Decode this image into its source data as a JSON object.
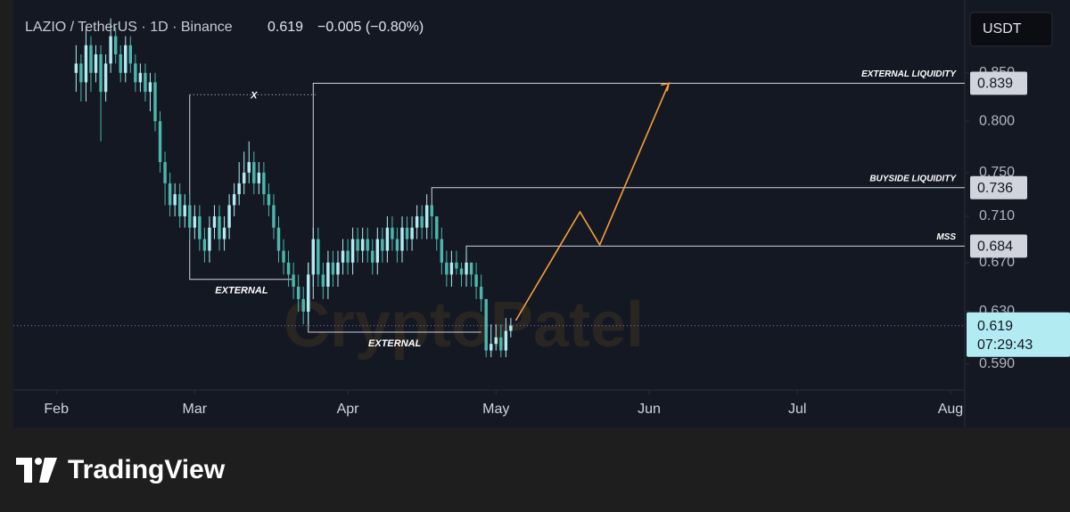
{
  "header": {
    "symbol": "LAZIO / TetherUS · 1D · Binance",
    "price": 0.619,
    "change": "−0.005 (−0.80%)",
    "currency": "USDT"
  },
  "brand": "TradingView",
  "watermark": "CryptoPatel",
  "chart_data": {
    "type": "candlestick",
    "log_scale": true,
    "up_color": "#b2ebf2",
    "down_color": "#4db6ac",
    "x": [
      4,
      5,
      6,
      7,
      8,
      9,
      10,
      11,
      12,
      13,
      14,
      15,
      16,
      17,
      18,
      19,
      20,
      21,
      22,
      23,
      24,
      25,
      26,
      27,
      28,
      29,
      30,
      31,
      32,
      33,
      34,
      35,
      36,
      37,
      38,
      39,
      40,
      41,
      42,
      43,
      44,
      45,
      46,
      47,
      48,
      49,
      50,
      51,
      52,
      53,
      54,
      55,
      56,
      57,
      58,
      59,
      60,
      61,
      62,
      63,
      64,
      65,
      66,
      67,
      68,
      69,
      70,
      71,
      72,
      73,
      74,
      75,
      76,
      77,
      78,
      79,
      80,
      81,
      82,
      83,
      84,
      85,
      86,
      87,
      88,
      89,
      90,
      91,
      92
    ],
    "open": [
      0.85,
      0.86,
      0.84,
      0.88,
      0.85,
      0.87,
      0.83,
      0.86,
      0.89,
      0.87,
      0.85,
      0.88,
      0.86,
      0.84,
      0.85,
      0.83,
      0.84,
      0.8,
      0.76,
      0.74,
      0.72,
      0.73,
      0.71,
      0.72,
      0.7,
      0.71,
      0.69,
      0.68,
      0.7,
      0.71,
      0.69,
      0.7,
      0.72,
      0.73,
      0.74,
      0.75,
      0.76,
      0.74,
      0.75,
      0.73,
      0.72,
      0.7,
      0.68,
      0.67,
      0.66,
      0.65,
      0.64,
      0.63,
      0.66,
      0.69,
      0.66,
      0.65,
      0.67,
      0.66,
      0.67,
      0.68,
      0.67,
      0.69,
      0.68,
      0.69,
      0.68,
      0.67,
      0.69,
      0.68,
      0.7,
      0.69,
      0.68,
      0.7,
      0.69,
      0.7,
      0.71,
      0.7,
      0.72,
      0.71,
      0.69,
      0.67,
      0.66,
      0.67,
      0.665,
      0.66,
      0.67,
      0.66,
      0.65,
      0.64,
      0.6,
      0.605,
      0.61,
      0.6,
      0.615
    ],
    "high": [
      0.88,
      0.87,
      0.9,
      0.89,
      0.88,
      0.88,
      0.87,
      0.91,
      0.9,
      0.88,
      0.89,
      0.89,
      0.87,
      0.86,
      0.86,
      0.85,
      0.85,
      0.81,
      0.77,
      0.75,
      0.74,
      0.74,
      0.73,
      0.73,
      0.72,
      0.72,
      0.7,
      0.71,
      0.72,
      0.72,
      0.71,
      0.73,
      0.74,
      0.76,
      0.77,
      0.78,
      0.77,
      0.76,
      0.76,
      0.74,
      0.73,
      0.71,
      0.69,
      0.68,
      0.67,
      0.66,
      0.65,
      0.67,
      0.7,
      0.7,
      0.67,
      0.68,
      0.68,
      0.68,
      0.69,
      0.69,
      0.7,
      0.7,
      0.7,
      0.7,
      0.69,
      0.7,
      0.7,
      0.71,
      0.71,
      0.7,
      0.71,
      0.71,
      0.71,
      0.72,
      0.72,
      0.73,
      0.72,
      0.71,
      0.7,
      0.68,
      0.68,
      0.68,
      0.67,
      0.68,
      0.67,
      0.67,
      0.66,
      0.64,
      0.62,
      0.62,
      0.62,
      0.625,
      0.625
    ],
    "low": [
      0.83,
      0.82,
      0.82,
      0.83,
      0.84,
      0.78,
      0.82,
      0.85,
      0.86,
      0.84,
      0.84,
      0.85,
      0.83,
      0.83,
      0.82,
      0.81,
      0.79,
      0.75,
      0.72,
      0.71,
      0.71,
      0.7,
      0.7,
      0.69,
      0.69,
      0.68,
      0.67,
      0.67,
      0.69,
      0.68,
      0.68,
      0.69,
      0.71,
      0.72,
      0.73,
      0.74,
      0.73,
      0.73,
      0.72,
      0.71,
      0.69,
      0.67,
      0.66,
      0.65,
      0.64,
      0.63,
      0.62,
      0.62,
      0.65,
      0.65,
      0.64,
      0.64,
      0.65,
      0.65,
      0.66,
      0.66,
      0.66,
      0.67,
      0.67,
      0.67,
      0.66,
      0.66,
      0.67,
      0.67,
      0.68,
      0.67,
      0.67,
      0.68,
      0.68,
      0.69,
      0.69,
      0.69,
      0.69,
      0.68,
      0.66,
      0.65,
      0.65,
      0.66,
      0.65,
      0.65,
      0.65,
      0.64,
      0.63,
      0.595,
      0.595,
      0.6,
      0.595,
      0.595,
      0.61
    ],
    "close": [
      0.86,
      0.84,
      0.88,
      0.85,
      0.87,
      0.83,
      0.86,
      0.89,
      0.87,
      0.85,
      0.88,
      0.86,
      0.84,
      0.85,
      0.83,
      0.84,
      0.8,
      0.76,
      0.74,
      0.72,
      0.73,
      0.71,
      0.72,
      0.7,
      0.71,
      0.69,
      0.68,
      0.7,
      0.71,
      0.69,
      0.7,
      0.72,
      0.73,
      0.74,
      0.75,
      0.76,
      0.74,
      0.75,
      0.73,
      0.72,
      0.7,
      0.68,
      0.67,
      0.66,
      0.65,
      0.64,
      0.63,
      0.66,
      0.69,
      0.66,
      0.65,
      0.67,
      0.66,
      0.67,
      0.68,
      0.67,
      0.69,
      0.68,
      0.69,
      0.68,
      0.67,
      0.69,
      0.68,
      0.7,
      0.69,
      0.68,
      0.7,
      0.69,
      0.7,
      0.71,
      0.7,
      0.72,
      0.71,
      0.69,
      0.67,
      0.66,
      0.67,
      0.665,
      0.66,
      0.67,
      0.66,
      0.65,
      0.64,
      0.6,
      0.605,
      0.61,
      0.6,
      0.615,
      0.619
    ],
    "xlim": [
      -8.7,
      183.9
    ],
    "ylim": [
      0.571,
      0.921
    ],
    "xticks": [
      {
        "value": 0,
        "label": "Feb"
      },
      {
        "value": 28,
        "label": "Mar"
      },
      {
        "value": 59,
        "label": "Apr"
      },
      {
        "value": 89,
        "label": "May"
      },
      {
        "value": 120,
        "label": "Jun"
      },
      {
        "value": 150,
        "label": "Jul"
      },
      {
        "value": 181,
        "label": "Aug"
      }
    ],
    "yticks": [
      {
        "value": 0.59,
        "label": "0.590"
      },
      {
        "value": 0.63,
        "label": "0.630"
      },
      {
        "value": 0.67,
        "label": "0.670"
      },
      {
        "value": 0.71,
        "label": "0.710"
      },
      {
        "value": 0.75,
        "label": "0.750"
      },
      {
        "value": 0.8,
        "label": "0.800"
      },
      {
        "value": 0.85,
        "label": "0.850"
      }
    ],
    "levels": [
      {
        "label": "EXTERNAL LIQUIDITY",
        "value": 0.839,
        "start": 52,
        "base": 0.64
      },
      {
        "label": "BUYSIDE LIQUIDITY",
        "value": 0.736,
        "start": 76,
        "base": 0.71
      },
      {
        "label": "MSS",
        "value": 0.684,
        "start": 83,
        "base": 0.67
      }
    ],
    "structures": [
      {
        "label": "EXTERNAL",
        "x": [
          27,
          27,
          48
        ],
        "y": [
          0.827,
          0.656,
          0.656
        ]
      },
      {
        "label": "X",
        "x": [
          27,
          53
        ],
        "y": [
          0.827,
          0.827
        ],
        "dotted": true
      },
      {
        "label": "EXTERNAL",
        "x": [
          51,
          51,
          86
        ],
        "y": [
          0.67,
          0.614,
          0.614
        ]
      }
    ],
    "projection": {
      "color": "#f5a03a",
      "x": [
        93,
        106,
        110,
        124
      ],
      "y": [
        0.623,
        0.714,
        0.685,
        0.839
      ]
    },
    "last_price": {
      "value": 0.619,
      "countdown": "07:29:43",
      "color": "#9c6ade"
    }
  }
}
